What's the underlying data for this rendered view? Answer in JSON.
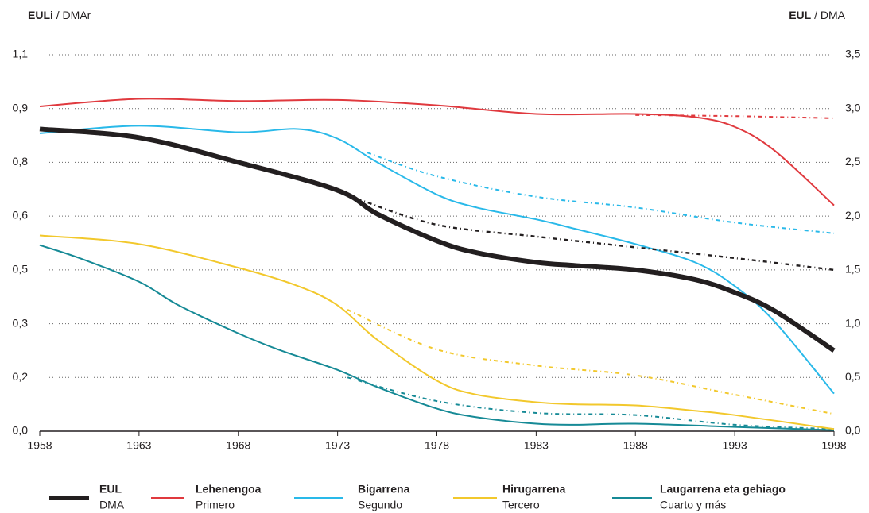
{
  "chart_data": {
    "type": "line",
    "y_title_bold": "EULi",
    "y_title_rest": "/ DMAr",
    "y2_title_bold": "EUL",
    "y2_title_rest": "/ DMA",
    "xlim": [
      1958,
      1998
    ],
    "xticks": [
      1958,
      1963,
      1968,
      1973,
      1978,
      1983,
      1988,
      1993,
      1998
    ],
    "ylim": [
      0,
      1.1
    ],
    "yticks": [
      {
        "value": 0,
        "label": "0,0"
      },
      {
        "value": 0.157,
        "label": "0,2"
      },
      {
        "value": 0.314,
        "label": "0,3"
      },
      {
        "value": 0.471,
        "label": "0,5"
      },
      {
        "value": 0.629,
        "label": "0,6"
      },
      {
        "value": 0.786,
        "label": "0,8"
      },
      {
        "value": 0.943,
        "label": "0,9"
      },
      {
        "value": 1.1,
        "label": "1,1"
      }
    ],
    "y2lim": [
      0,
      3.5
    ],
    "y2ticks": [
      {
        "value": 0,
        "label": "0,0"
      },
      {
        "value": 0.5,
        "label": "0,5"
      },
      {
        "value": 1,
        "label": "1,0"
      },
      {
        "value": 1.5,
        "label": "1,5"
      },
      {
        "value": 2,
        "label": "2,0"
      },
      {
        "value": 2.5,
        "label": "2,5"
      },
      {
        "value": 3,
        "label": "3,0"
      },
      {
        "value": 3.5,
        "label": "3,5"
      }
    ],
    "grid": true,
    "series": [
      {
        "name": "EUL",
        "subname": "DMA",
        "color": "#231f20",
        "width": 6,
        "axis": "y2",
        "x": [
          1958,
          1963,
          1968,
          1973,
          1975,
          1978,
          1980,
          1983,
          1985,
          1988,
          1991,
          1993,
          1995,
          1998
        ],
        "values": [
          2.81,
          2.73,
          2.5,
          2.24,
          2.02,
          1.77,
          1.66,
          1.57,
          1.54,
          1.5,
          1.41,
          1.29,
          1.12,
          0.75
        ],
        "projection_x": [
          1974,
          1978,
          1983,
          1988,
          1993,
          1998
        ],
        "projection_values": [
          2.16,
          1.92,
          1.81,
          1.71,
          1.61,
          1.5
        ]
      },
      {
        "name": "Lehenengoa",
        "subname": "Primero",
        "color": "#e0393e",
        "width": 2,
        "axis": "y2",
        "x": [
          1958,
          1963,
          1968,
          1973,
          1978,
          1983,
          1988,
          1991,
          1993,
          1995,
          1998
        ],
        "values": [
          3.02,
          3.09,
          3.07,
          3.08,
          3.03,
          2.95,
          2.95,
          2.92,
          2.83,
          2.61,
          2.1
        ],
        "projection_x": [
          1988,
          1993,
          1998
        ],
        "projection_values": [
          2.94,
          2.93,
          2.91
        ]
      },
      {
        "name": "Bigarrena",
        "subname": "Segundo",
        "color": "#29b9e9",
        "width": 2,
        "axis": "y2",
        "x": [
          1958,
          1963,
          1968,
          1971,
          1973,
          1975,
          1978,
          1980,
          1983,
          1985,
          1988,
          1991,
          1993,
          1995,
          1998
        ],
        "values": [
          2.77,
          2.84,
          2.78,
          2.81,
          2.72,
          2.5,
          2.2,
          2.08,
          1.97,
          1.88,
          1.74,
          1.57,
          1.35,
          1.02,
          0.35
        ],
        "projection_x": [
          1974.5,
          1978,
          1983,
          1988,
          1993,
          1998
        ],
        "projection_values": [
          2.59,
          2.37,
          2.18,
          2.08,
          1.94,
          1.84
        ]
      },
      {
        "name": "Hirugarrena",
        "subname": "Tercero",
        "color": "#f2c82c",
        "width": 2,
        "axis": "y2",
        "x": [
          1958,
          1963,
          1968,
          1971,
          1973,
          1975,
          1978,
          1980,
          1983,
          1985,
          1988,
          1991,
          1993,
          1998
        ],
        "values": [
          1.82,
          1.74,
          1.52,
          1.35,
          1.17,
          0.85,
          0.47,
          0.34,
          0.27,
          0.25,
          0.24,
          0.19,
          0.15,
          0.02
        ],
        "projection_x": [
          1973.5,
          1978,
          1983,
          1988,
          1993,
          1998
        ],
        "projection_values": [
          1.13,
          0.76,
          0.61,
          0.52,
          0.34,
          0.16
        ]
      },
      {
        "name": "Laugarrena eta gehiago",
        "subname": "Cuarto y más",
        "color": "#168a96",
        "width": 2,
        "axis": "y2",
        "x": [
          1958,
          1960,
          1963,
          1965,
          1968,
          1970,
          1973,
          1975,
          1978,
          1980,
          1983,
          1985,
          1988,
          1993,
          1998
        ],
        "values": [
          1.73,
          1.61,
          1.39,
          1.17,
          0.91,
          0.76,
          0.57,
          0.41,
          0.21,
          0.13,
          0.07,
          0.06,
          0.07,
          0.04,
          0.01
        ],
        "projection_x": [
          1973.5,
          1978,
          1983,
          1988,
          1993,
          1998
        ],
        "projection_values": [
          0.5,
          0.28,
          0.17,
          0.15,
          0.06,
          0.02
        ]
      }
    ]
  }
}
